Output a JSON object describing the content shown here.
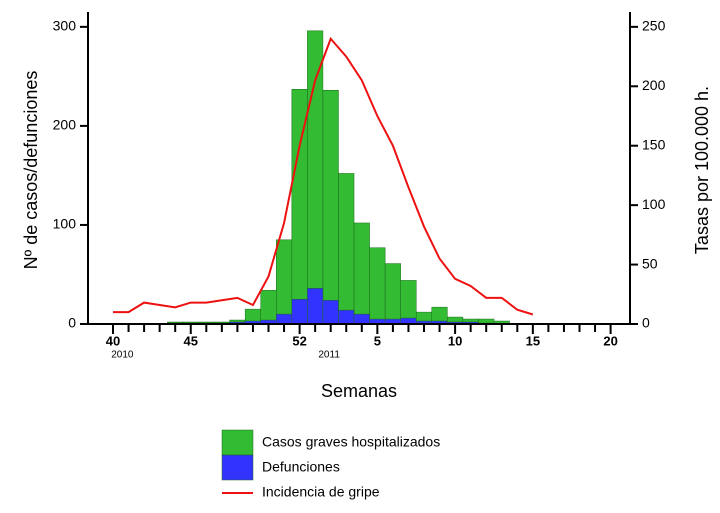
{
  "chart_data": {
    "type": "bar-line",
    "x_label": "Semanas",
    "y_label": "Nº de casos/defunciones",
    "y2_label": "Tasas por 100.000 h.",
    "year_labels": [
      "2010",
      "2011"
    ],
    "categories": [
      "40",
      null,
      null,
      null,
      null,
      "45",
      null,
      null,
      null,
      null,
      null,
      null,
      "52",
      null,
      null,
      null,
      null,
      "5",
      null,
      null,
      null,
      null,
      "10",
      null,
      null,
      null,
      null,
      "15",
      null,
      null,
      null,
      null,
      "20"
    ],
    "series": [
      {
        "name": "Casos graves hospitalizados",
        "type": "bar",
        "color": "#33bb33",
        "values": [
          0,
          0,
          0,
          0,
          2,
          2,
          2,
          2,
          4,
          15,
          34,
          85,
          237,
          296,
          236,
          152,
          102,
          77,
          61,
          44,
          12,
          17,
          7,
          5,
          5,
          3,
          0,
          0,
          0,
          0,
          0,
          0,
          0
        ]
      },
      {
        "name": "Defunciones",
        "type": "bar",
        "color": "#3333ff",
        "values": [
          0,
          0,
          0,
          0,
          1,
          1,
          1,
          1,
          2,
          3,
          4,
          10,
          25,
          36,
          24,
          14,
          10,
          5,
          5,
          6,
          3,
          3,
          2,
          2,
          1,
          0,
          0,
          0,
          0,
          0,
          0,
          0,
          0
        ]
      },
      {
        "name": "Incidencia de gripe",
        "type": "line",
        "axis": "y2",
        "color": "#ee1111",
        "values": [
          10,
          10,
          18,
          16,
          14,
          18,
          18,
          20,
          22,
          16,
          40,
          85,
          150,
          205,
          240,
          225,
          205,
          175,
          150,
          115,
          82,
          55,
          38,
          32,
          22,
          22,
          12,
          8,
          null,
          null,
          null,
          null,
          null
        ]
      }
    ],
    "ylim": [
      0,
      315
    ],
    "yticks": [
      0,
      100,
      200,
      300
    ],
    "y2lim": [
      0,
      262.5
    ],
    "y2ticks": [
      0,
      50,
      100,
      150,
      200,
      250
    ]
  }
}
